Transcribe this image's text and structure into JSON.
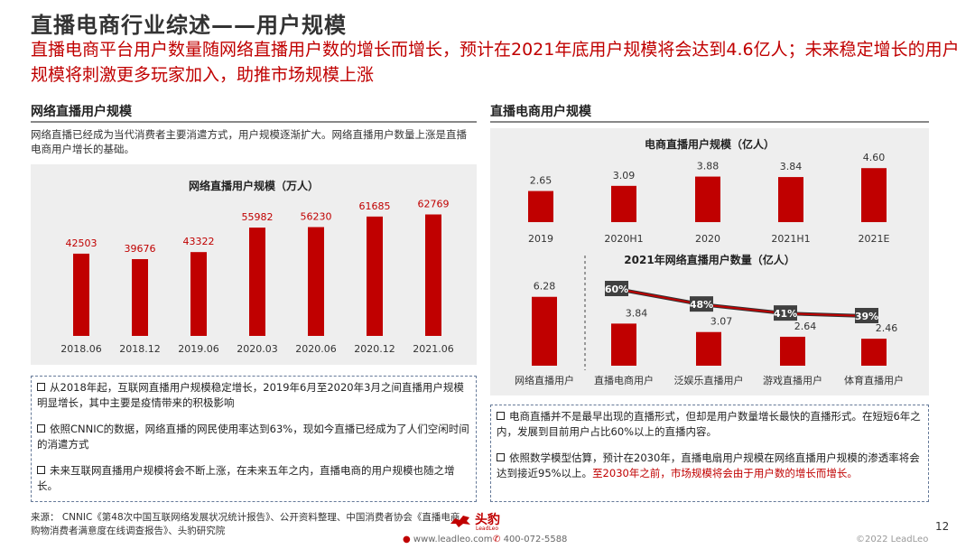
{
  "page": {
    "title": "直播电商行业综述——用户规模",
    "subtitle": "直播电商平台用户数量随网络直播用户数的增长而增长，预计在2021年底用户规模将会达到4.6亿人；未来稳定增长的用户规模将刺激更多玩家加入，助推市场规模上涨",
    "page_number": "12"
  },
  "left": {
    "section_title": "网络直播用户规模",
    "intro": "网络直播已经成为当代消费者主要消遣方式，用户规模逐渐扩大。网络直播用户数量上涨是直播电商用户增长的基础。",
    "notes": [
      "从2018年起，互联网直播用户规模稳定增长，2019年6月至2020年3月之间直播用户规模明显增长，其中主要是疫情带来的积极影响",
      "依照CNNIC的数据，网络直播的网民使用率达到63%，现如今直播已经成为了人们空闲时间的消遣方式",
      "未来互联网直播用户规模将会不断上涨，在未来五年之内，直播电商的用户规模也随之增长。"
    ]
  },
  "right": {
    "section_title": "直播电商用户规模",
    "notes": [
      {
        "text": "电商直播并不是最早出现的直播形式，但却是用户数量增长最快的直播形式。在短短6年之内，发展到目前用户占比60%以上的直播内容。",
        "highlight": ""
      },
      {
        "text": "依照数学模型估算，预计在2030年，直播电扇用户规模在网络直播用户规模的渗透率将会达到接近95%以上。",
        "highlight": "至2030年之前，市场规模将会由于用户数的增长而增长。"
      }
    ]
  },
  "source": {
    "text": "来源： CNNIC《第48次中国互联网络发展状况统计报告》、公开资料整理、中国消费者协会《直播电商购物消费者满意度在线调查报告》、头豹研究院"
  },
  "footer": {
    "logo_text": "头豹",
    "logo_sub": "LeadLeo",
    "website": "www.leadleo.com",
    "phone": "400-072-5588",
    "copyright": "©2022 LeadLeo"
  },
  "colors": {
    "bar": "#c00000",
    "accent_text": "#c00000",
    "panel_bg": "#eeeeee",
    "line": "#c00000",
    "badge_bg": "#404040"
  },
  "chart_data": [
    {
      "type": "bar",
      "title": "网络直播用户规模（万人）",
      "categories": [
        "2018.06",
        "2018.12",
        "2019.06",
        "2020.03",
        "2020.06",
        "2020.12",
        "2021.06"
      ],
      "values": [
        42503,
        39676,
        43322,
        55982,
        56230,
        61685,
        62769
      ],
      "ylim": [
        0,
        70000
      ],
      "grid": false
    },
    {
      "type": "bar",
      "title": "电商直播用户规模（亿人）",
      "categories": [
        "2019",
        "2020H1",
        "2020",
        "2021H1",
        "2021E"
      ],
      "values": [
        2.65,
        3.09,
        3.88,
        3.84,
        4.6
      ],
      "value_labels": [
        "2.65",
        "3.09",
        "3.88",
        "3.84",
        "4.60"
      ],
      "ylim": [
        0,
        5
      ],
      "grid": false
    },
    {
      "type": "bar",
      "title": "2021年网络直播用户数量（亿人）",
      "categories": [
        "网络直播用户",
        "直播电商用户",
        "泛娱乐直播用户",
        "游戏直播用户",
        "体育直播用户"
      ],
      "values": [
        6.28,
        3.84,
        3.07,
        2.64,
        2.46
      ],
      "ylim": [
        0,
        7
      ],
      "penetration_line": {
        "categories": [
          "直播电商用户",
          "泛娱乐直播用户",
          "游戏直播用户",
          "体育直播用户"
        ],
        "values": [
          60,
          48,
          41,
          39
        ],
        "labels": [
          "60%",
          "48%",
          "41%",
          "39%"
        ]
      },
      "grid": false
    }
  ]
}
